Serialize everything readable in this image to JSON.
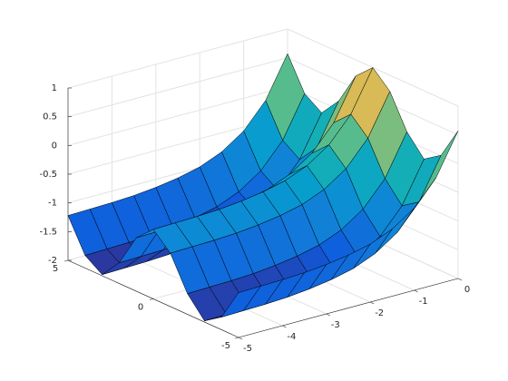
{
  "chart_data": {
    "type": "surface",
    "x": [
      -5,
      -4.5,
      -4,
      -3.5,
      -3,
      -2.5,
      -2,
      -1.5,
      -1,
      -0.5,
      0
    ],
    "y": [
      -5,
      -4,
      -3,
      -2,
      -1,
      0,
      1,
      2,
      3,
      4,
      5
    ],
    "z": [
      [
        -1.22,
        -1.78,
        -1.98,
        -1.64,
        -1.07,
        -0.79,
        -1.07,
        -1.64,
        -1.98,
        -1.78,
        -1.22
      ],
      [
        -1.21,
        -1.77,
        -1.97,
        -1.63,
        -1.06,
        -0.78,
        -1.06,
        -1.63,
        -1.97,
        -1.77,
        -1.21
      ],
      [
        -1.2,
        -1.76,
        -1.96,
        -1.62,
        -1.05,
        -0.77,
        -1.05,
        -1.62,
        -1.96,
        -1.76,
        -1.2
      ],
      [
        -1.18,
        -1.74,
        -1.94,
        -1.6,
        -1.03,
        -0.75,
        -1.03,
        -1.6,
        -1.94,
        -1.74,
        -1.18
      ],
      [
        -1.14,
        -1.7,
        -1.9,
        -1.56,
        -0.99,
        -0.71,
        -0.99,
        -1.56,
        -1.9,
        -1.7,
        -1.14
      ],
      [
        -1.08,
        -1.64,
        -1.84,
        -1.5,
        -0.93,
        -0.65,
        -0.93,
        -1.5,
        -1.84,
        -1.64,
        -1.08
      ],
      [
        -0.99,
        -1.55,
        -1.75,
        -1.41,
        -0.84,
        -0.56,
        -0.84,
        -1.41,
        -1.75,
        -1.55,
        -0.99
      ],
      [
        -0.83,
        -1.39,
        -1.59,
        -1.25,
        -0.68,
        -0.4,
        -0.68,
        -1.25,
        -1.59,
        -1.39,
        -0.83
      ],
      [
        -0.57,
        -1.13,
        -1.33,
        -0.99,
        -0.42,
        -0.14,
        -0.42,
        -0.99,
        -1.33,
        -1.13,
        -0.57
      ],
      [
        -0.14,
        -0.7,
        -0.9,
        -0.56,
        0.01,
        0.29,
        0.01,
        -0.56,
        -0.9,
        -0.7,
        -0.14
      ],
      [
        0.57,
        0.01,
        -0.19,
        0.15,
        0.72,
        1.0,
        0.72,
        0.15,
        -0.19,
        0.01,
        0.57
      ]
    ],
    "xlim": [
      -5,
      0
    ],
    "ylim": [
      -5,
      5
    ],
    "zlim": [
      -2,
      1
    ],
    "xticks": [
      -5,
      -4,
      -3,
      -2,
      -1,
      0
    ],
    "yticks": [
      -5,
      0,
      5
    ],
    "zticks": [
      -2,
      -1.5,
      -1,
      -0.5,
      0,
      0.5,
      1
    ],
    "grid": true,
    "colormap": "parula",
    "edge_color": "#000000"
  }
}
